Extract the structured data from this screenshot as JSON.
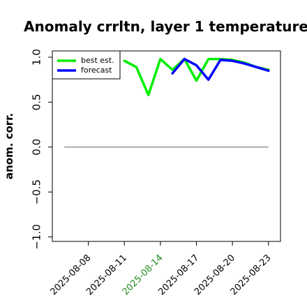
{
  "chart_data": {
    "type": "line",
    "title": "Anomaly crrltn, layer 1 temperature",
    "xlabel": "",
    "ylabel": "anom. corr.",
    "x": [
      "2025-08-06",
      "2025-08-07",
      "2025-08-08",
      "2025-08-09",
      "2025-08-10",
      "2025-08-11",
      "2025-08-12",
      "2025-08-13",
      "2025-08-14",
      "2025-08-15",
      "2025-08-16",
      "2025-08-17",
      "2025-08-18",
      "2025-08-19",
      "2025-08-20",
      "2025-08-21",
      "2025-08-22",
      "2025-08-23"
    ],
    "xticks": [
      "2025-08-08",
      "2025-08-11",
      "2025-08-14",
      "2025-08-17",
      "2025-08-20",
      "2025-08-23"
    ],
    "highlight_tick": "2025-08-14",
    "xlim": [
      "2025-08-05",
      "2025-08-24"
    ],
    "yticks": [
      -1.0,
      -0.5,
      0.0,
      0.5,
      1.0
    ],
    "ytick_labels": [
      "−1.0",
      "−0.5",
      "0.0",
      "0.5",
      "1.0"
    ],
    "ylim": [
      -1.05,
      1.07
    ],
    "series": [
      {
        "name": "best est.",
        "color": "#00ee00",
        "values": [
          null,
          null,
          null,
          null,
          null,
          0.96,
          0.89,
          0.58,
          0.98,
          0.86,
          0.98,
          0.74,
          0.98,
          0.98,
          0.97,
          0.94,
          0.89,
          0.86
        ]
      },
      {
        "name": "forecast",
        "color": "#0000ff",
        "values": [
          null,
          null,
          null,
          null,
          null,
          null,
          null,
          null,
          null,
          0.82,
          0.98,
          0.91,
          0.75,
          0.97,
          0.96,
          0.93,
          0.89,
          0.85
        ]
      }
    ],
    "reference_line": {
      "y": 0.0,
      "x_start": "2025-08-06",
      "x_end": "2025-08-23",
      "color": "#777777"
    },
    "legend": {
      "placement": "top-left"
    },
    "grid": false,
    "text_color": "#000000",
    "highlight_color": "#228b22"
  }
}
